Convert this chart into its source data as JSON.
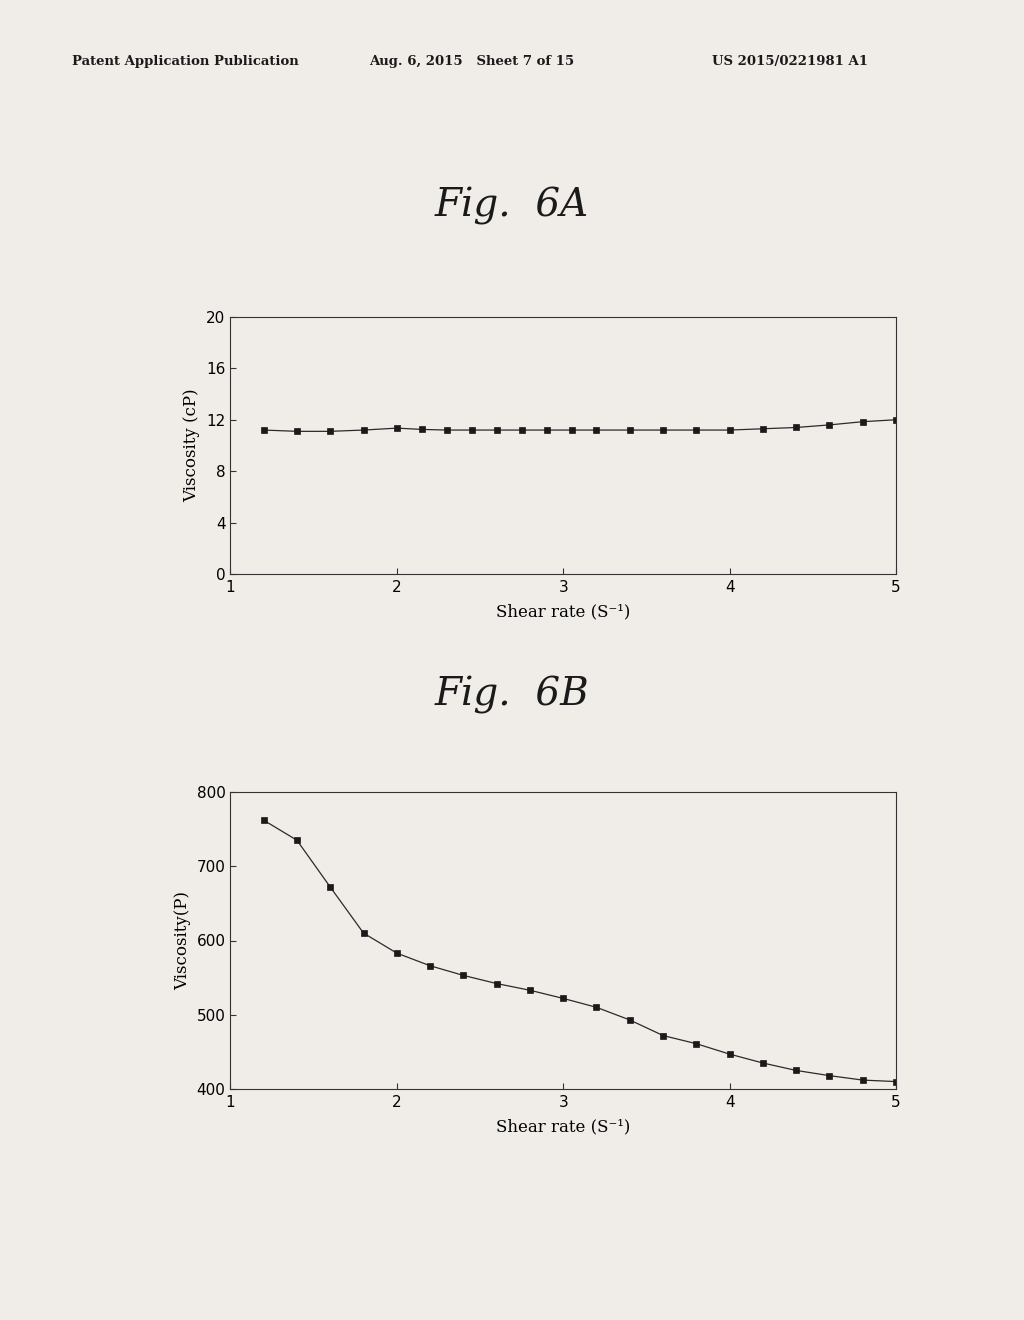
{
  "header_left": "Patent Application Publication",
  "header_mid": "Aug. 6, 2015   Sheet 7 of 15",
  "header_right": "US 2015/0221981 A1",
  "fig6A_title": "Fig.  6A",
  "fig6B_title": "Fig.  6B",
  "fig6A": {
    "xlabel": "Shear rate (S⁻¹)",
    "ylabel": "Viscosity (cP)",
    "xlim": [
      1,
      5
    ],
    "ylim": [
      0,
      20
    ],
    "yticks": [
      0,
      4,
      8,
      12,
      16,
      20
    ],
    "xticks": [
      1,
      2,
      3,
      4,
      5
    ],
    "x": [
      1.2,
      1.4,
      1.6,
      1.8,
      2.0,
      2.15,
      2.3,
      2.45,
      2.6,
      2.75,
      2.9,
      3.05,
      3.2,
      3.4,
      3.6,
      3.8,
      4.0,
      4.2,
      4.4,
      4.6,
      4.8,
      5.0
    ],
    "y": [
      11.2,
      11.1,
      11.1,
      11.2,
      11.35,
      11.25,
      11.2,
      11.2,
      11.2,
      11.2,
      11.2,
      11.2,
      11.2,
      11.2,
      11.2,
      11.2,
      11.2,
      11.3,
      11.4,
      11.6,
      11.85,
      12.0
    ]
  },
  "fig6B": {
    "xlabel": "Shear rate (S⁻¹)",
    "ylabel": "Viscosity(P)",
    "xlim": [
      1,
      5
    ],
    "ylim": [
      400,
      800
    ],
    "yticks": [
      400,
      500,
      600,
      700,
      800
    ],
    "xticks": [
      1,
      2,
      3,
      4,
      5
    ],
    "x": [
      1.2,
      1.4,
      1.6,
      1.8,
      2.0,
      2.2,
      2.4,
      2.6,
      2.8,
      3.0,
      3.2,
      3.4,
      3.6,
      3.8,
      4.0,
      4.2,
      4.4,
      4.6,
      4.8,
      5.0
    ],
    "y": [
      762,
      735,
      672,
      610,
      583,
      566,
      553,
      542,
      533,
      522,
      510,
      493,
      472,
      461,
      447,
      435,
      425,
      418,
      412,
      410
    ]
  },
  "bg_color": "#f0ede8",
  "plot_bg": "#f0ede8",
  "line_color": "#2a2a2a",
  "marker_color": "#1a1a1a",
  "text_color": "#1a1a1a",
  "header_fontsize": 9.5,
  "title_fontsize": 28,
  "axis_label_fontsize": 12,
  "tick_fontsize": 11
}
